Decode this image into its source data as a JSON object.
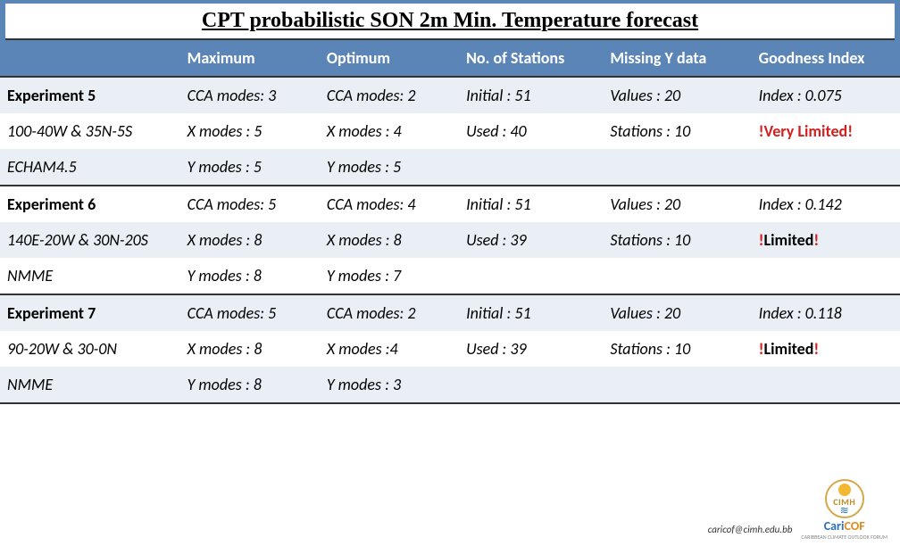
{
  "title": "CPT probabilistic SON 2m Min. Temperature forecast",
  "headers": [
    "",
    "Maximum",
    "Optimum",
    "No. of Stations",
    "Missing Y data",
    "Goodness Index"
  ],
  "col_widths": [
    "200px",
    "155px",
    "155px",
    "160px",
    "165px",
    "165px"
  ],
  "header_bg": "#5b85b6",
  "alt_row_bg": "#eaeef5",
  "row_bg": "#ffffff",
  "border_color": "#333333",
  "red_color": "#d02020",
  "title_fontsize": 24,
  "cell_fontsize": 18,
  "rows": [
    {
      "alt": true,
      "bold0": true,
      "cells": [
        "Experiment 5",
        "CCA modes: 3",
        "CCA modes: 2",
        "Initial : 51",
        "Values : 20",
        "Index : 0.075"
      ],
      "lastStyle": "plain"
    },
    {
      "alt": false,
      "bold0": false,
      "cells": [
        "100-40W & 35N-5S",
        "X modes : 5",
        "X modes : 4",
        "Used : 40",
        "Stations : 10",
        "!Very Limited!"
      ],
      "lastStyle": "red"
    },
    {
      "alt": true,
      "bold0": false,
      "sep": true,
      "cells": [
        "ECHAM4.5",
        "Y modes : 5",
        "Y modes : 5",
        "",
        "",
        ""
      ],
      "lastStyle": "plain"
    },
    {
      "alt": false,
      "bold0": true,
      "cells": [
        "Experiment 6",
        "CCA modes: 5",
        "CCA modes: 4",
        "Initial : 51",
        "Values : 20",
        "Index : 0.142"
      ],
      "lastStyle": "plain"
    },
    {
      "alt": true,
      "bold0": false,
      "cells": [
        "140E-20W & 30N-20S",
        "X modes : 8",
        "X modes : 8",
        "Used : 39",
        "Stations : 10",
        "!Limited!"
      ],
      "lastStyle": "boldbang"
    },
    {
      "alt": false,
      "bold0": false,
      "sep": true,
      "cells": [
        "NMME",
        "Y modes : 8",
        "Y modes : 7",
        "",
        "",
        ""
      ],
      "lastStyle": "plain"
    },
    {
      "alt": true,
      "bold0": true,
      "cells": [
        "Experiment 7",
        "CCA modes: 5",
        "CCA modes: 2",
        "Initial : 51",
        "Values : 20",
        "Index : 0.118"
      ],
      "lastStyle": "plain"
    },
    {
      "alt": false,
      "bold0": false,
      "cells": [
        "90-20W & 30-0N",
        "X modes : 8",
        "X modes :4",
        "Used : 39",
        "Stations : 10",
        "!Limited!"
      ],
      "lastStyle": "boldbang"
    },
    {
      "alt": true,
      "bold0": false,
      "sep": true,
      "cells": [
        "NMME",
        "Y modes : 8",
        "Y modes : 3",
        "",
        "",
        ""
      ],
      "lastStyle": "plain"
    }
  ],
  "footer": {
    "email": "caricof@cimh.edu.bb",
    "brand_top": "CIMH",
    "brand_name_1": "Cari",
    "brand_name_2": "COF",
    "brand_sub": "CARIBBEAN CLIMATE OUTLOOK FORUM"
  }
}
